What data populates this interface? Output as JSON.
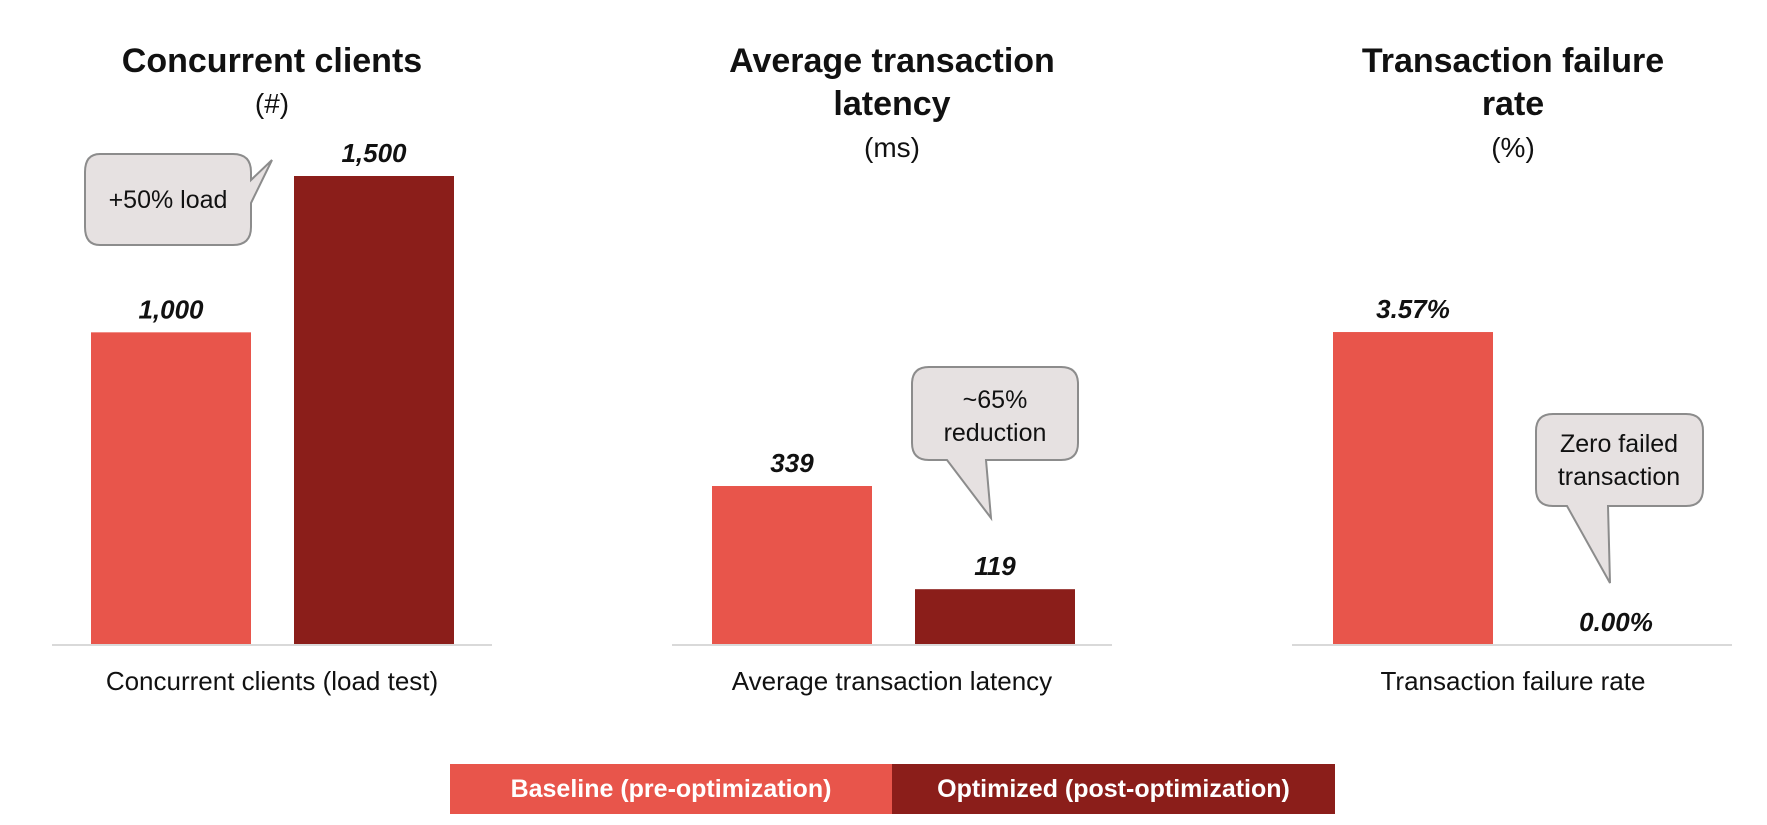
{
  "colors": {
    "baseline": "#E8554B",
    "optimized": "#8B1E1A",
    "baseline_line": "#d9d9d9",
    "callout_fill": "#E6E1E1",
    "callout_stroke": "#8c8c8c"
  },
  "chart_data": [
    {
      "type": "bar",
      "title": "Concurrent clients",
      "unit": "(#)",
      "categories": [
        "Concurrent clients (load test)"
      ],
      "series": [
        {
          "name": "Baseline (pre-optimization)",
          "values": [
            1000
          ]
        },
        {
          "name": "Optimized (post-optimization)",
          "values": [
            1500
          ]
        }
      ],
      "value_labels": [
        "1,000",
        "1,500"
      ],
      "ylim": [
        0,
        1500
      ],
      "callout": {
        "text": [
          "+50% load"
        ]
      }
    },
    {
      "type": "bar",
      "title": "Average transaction latency",
      "unit": "(ms)",
      "categories": [
        "Average transaction latency"
      ],
      "series": [
        {
          "name": "Baseline (pre-optimization)",
          "values": [
            339
          ]
        },
        {
          "name": "Optimized (post-optimization)",
          "values": [
            119
          ]
        }
      ],
      "value_labels": [
        "339",
        "119"
      ],
      "ylim": [
        0,
        1000
      ],
      "callout": {
        "text": [
          "~65%",
          "reduction"
        ]
      }
    },
    {
      "type": "bar",
      "title": "Transaction failure rate",
      "unit": "(%)",
      "categories": [
        "Transaction failure rate"
      ],
      "series": [
        {
          "name": "Baseline (pre-optimization)",
          "values": [
            3.57
          ]
        },
        {
          "name": "Optimized (post-optimization)",
          "values": [
            0.0
          ]
        }
      ],
      "value_labels": [
        "3.57%",
        "0.00%"
      ],
      "ylim": [
        0,
        5.35
      ],
      "callout": {
        "text": [
          "Zero failed",
          "transaction"
        ]
      }
    }
  ],
  "legend": {
    "baseline_label": "Baseline (pre-optimization)",
    "optimized_label": "Optimized (post-optimization)"
  }
}
